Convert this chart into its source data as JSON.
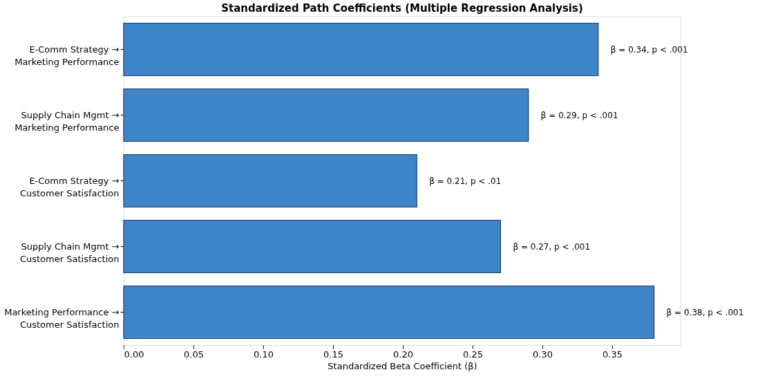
{
  "chart_data": {
    "type": "bar",
    "orientation": "horizontal",
    "title": "Standardized Path Coefficients (Multiple Regression Analysis)",
    "xlabel": "Standardized Beta Coefficient (β)",
    "categories": [
      "E-Comm Strategy →\nMarketing Performance",
      "Supply Chain Mgmt →\nMarketing Performance",
      "E-Comm Strategy →\nCustomer Satisfaction",
      "Supply Chain Mgmt →\nCustomer Satisfaction",
      "Marketing Performance →\nCustomer Satisfaction"
    ],
    "values": [
      0.34,
      0.29,
      0.21,
      0.27,
      0.38
    ],
    "value_labels": [
      "β = 0.34, p < .001",
      "β = 0.29, p < .001",
      "β = 0.21, p < .01",
      "β = 0.27, p < .001",
      "β = 0.38, p < .001"
    ],
    "color": "#3d85c6",
    "xlim": [
      0,
      0.399
    ],
    "xticks": [
      {
        "value": 0,
        "label": "0.00"
      },
      0.05,
      {
        "value": 0.1,
        "label": "0.10"
      },
      0.15,
      {
        "value": 0.2,
        "label": "0.20"
      },
      0.25,
      {
        "value": 0.3,
        "label": "0.30"
      },
      0.35
    ],
    "grid": false
  }
}
